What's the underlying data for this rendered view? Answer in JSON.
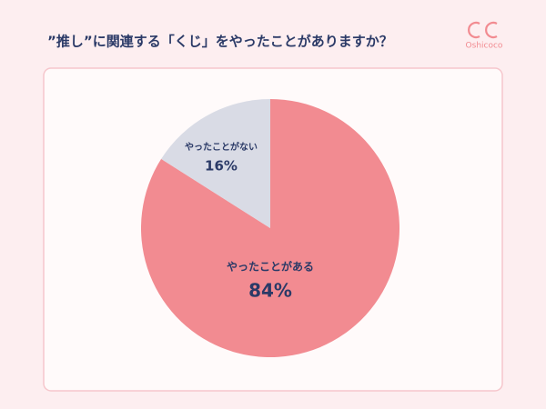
{
  "chart_data": {
    "type": "pie",
    "title": "”推し”に関連する「くじ」をやったことがありますか？",
    "brand": "Oshicoco",
    "categories": [
      "やったことがある",
      "やったことがない"
    ],
    "values": [
      84,
      16
    ],
    "value_labels": [
      "84%",
      "16%"
    ],
    "colors": [
      "#f28b91",
      "#d9dbe5"
    ]
  }
}
